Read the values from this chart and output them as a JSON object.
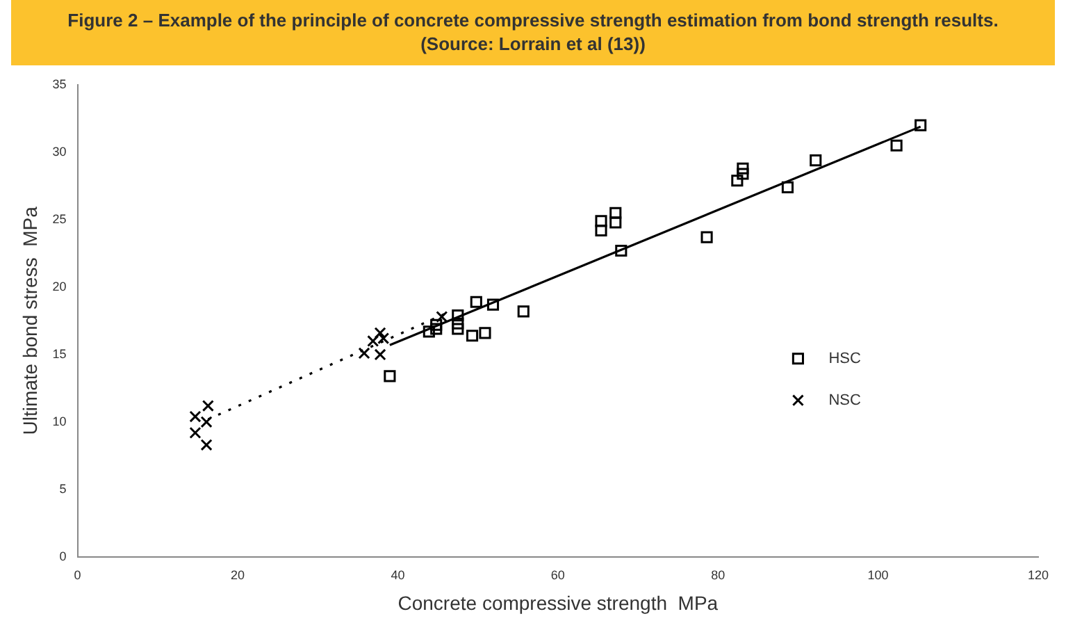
{
  "chart_data": {
    "type": "scatter",
    "title": "Figure 2 – Example of the principle of concrete compressive strength estimation from bond strength results. (Source: Lorrain et al (13))",
    "xlabel": "Concrete compressive strength  MPa",
    "ylabel": "Ultimate bond stress  MPa",
    "xlim": [
      0,
      120
    ],
    "xticks": [
      0,
      20,
      40,
      60,
      80,
      100,
      120
    ],
    "ylim": [
      0,
      35
    ],
    "yticks": [
      0,
      5,
      10,
      15,
      20,
      25,
      30,
      35
    ],
    "grid": false,
    "legend": "right",
    "series": [
      {
        "name": "HSC",
        "color": "#000000",
        "marker": "square",
        "x": [
          39.0,
          43.9,
          44.8,
          44.8,
          47.5,
          47.5,
          47.5,
          49.8,
          51.9,
          49.3,
          50.9,
          55.7,
          65.4,
          65.4,
          67.2,
          67.2,
          67.9,
          78.6,
          82.4,
          83.1,
          83.1,
          88.7,
          92.2,
          102.3,
          105.3
        ],
        "values": [
          13.4,
          16.7,
          17.2,
          16.9,
          17.9,
          17.3,
          16.9,
          18.9,
          18.7,
          16.4,
          16.6,
          18.2,
          24.9,
          24.2,
          25.5,
          24.8,
          22.7,
          23.7,
          27.9,
          28.8,
          28.4,
          27.4,
          29.4,
          30.5,
          32.0
        ]
      },
      {
        "name": "NSC",
        "color": "#000000",
        "marker": "cross",
        "x": [
          16.3,
          14.7,
          16.1,
          14.7,
          16.1,
          35.8,
          37.8,
          36.9,
          37.8,
          38.2,
          45.5
        ],
        "values": [
          11.2,
          10.4,
          10.0,
          9.2,
          8.3,
          15.1,
          15.0,
          16.0,
          16.6,
          16.2,
          17.8
        ]
      },
      {
        "type": "line",
        "color": "#000000",
        "marker": "none",
        "line_style": "solid",
        "x": [
          39.0,
          105.3
        ],
        "values": [
          15.7,
          31.9
        ]
      },
      {
        "type": "line",
        "color": "#000000",
        "marker": "none",
        "line_style": "dotted",
        "x": [
          16.3,
          46.2
        ],
        "values": [
          10.2,
          18.1
        ]
      }
    ]
  }
}
